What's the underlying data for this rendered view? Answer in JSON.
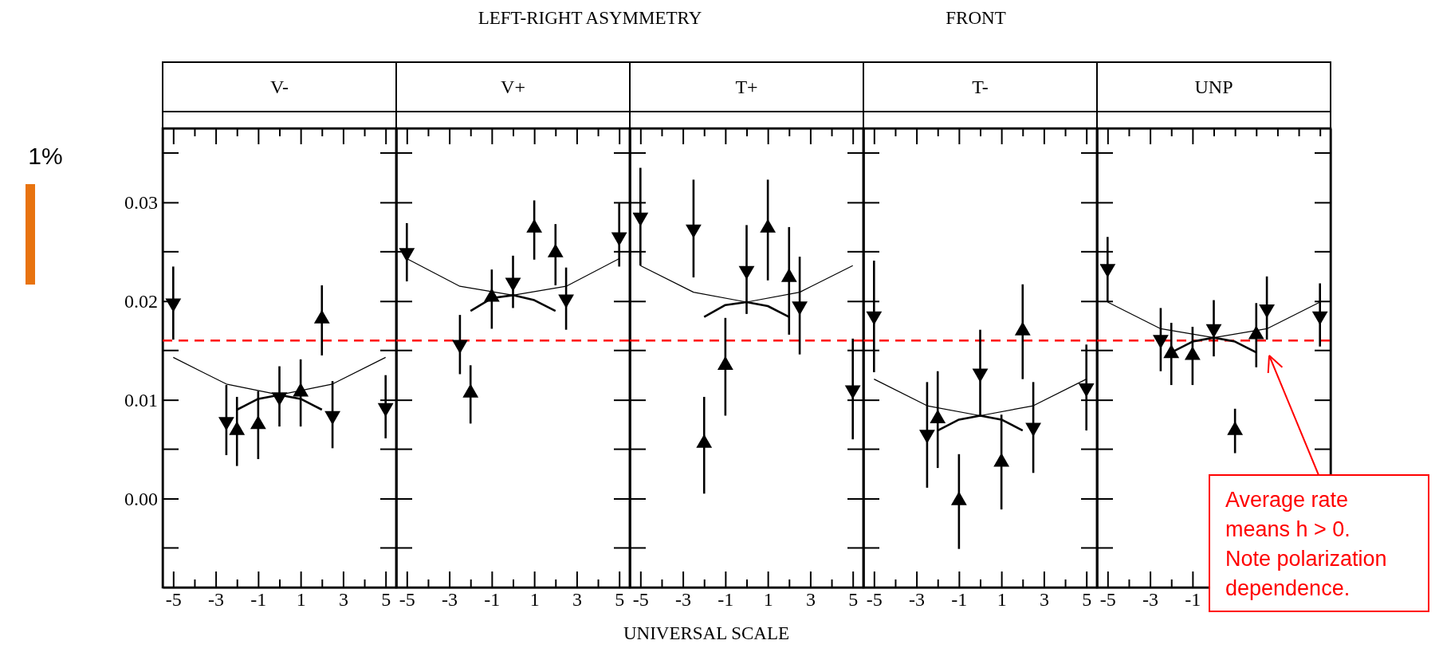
{
  "chart_data": [
    {
      "type": "scatter",
      "title": "V-",
      "annotations": [
        "LEFT-RIGHT ASYMMETRY",
        "FRONT",
        "UNIVERSAL SCALE",
        "1%"
      ],
      "xlim": [
        -5.5,
        5.5
      ],
      "xticks": [
        -5,
        {
          "value": -4,
          "label": null
        },
        -3,
        {
          "value": -2,
          "label": null
        },
        -1,
        {
          "value": 0,
          "label": null
        },
        1,
        {
          "value": 2,
          "label": null
        },
        3,
        {
          "value": 4,
          "label": null
        },
        5
      ],
      "ylim": [
        -0.009,
        0.0375
      ],
      "yticks": [
        {
          "value": 0,
          "label": "0.00"
        },
        {
          "value": 0.01,
          "label": "0.01"
        },
        {
          "value": 0.02,
          "label": "0.02"
        },
        {
          "value": 0.03,
          "label": "0.03"
        }
      ],
      "ref_lines": [
        {
          "axis": "y",
          "value": 0.016,
          "color": "#ff0000",
          "line_style": "dashed"
        }
      ],
      "series": [
        {
          "type": "line",
          "color": "#000000",
          "x": [
            -5,
            -2.5,
            0,
            2.5,
            5
          ],
          "values": [
            0.0143,
            0.0116,
            0.0105,
            0.0116,
            0.0143
          ]
        },
        {
          "type": "line",
          "color": "#000000",
          "x": [
            -2,
            -1,
            0,
            1,
            2
          ],
          "values": [
            0.009,
            0.0101,
            0.0105,
            0.0101,
            0.009
          ]
        },
        {
          "color": "#000000",
          "marker": "triangle-down",
          "x": [
            -5,
            -2.5,
            0,
            2.5,
            5
          ],
          "values": [
            0.0198,
            0.0078,
            0.0103,
            0.0084,
            0.0092
          ],
          "errors": [
            [
              0.0161,
              0.0235
            ],
            [
              0.0044,
              0.0115
            ],
            [
              0.0073,
              0.0134
            ],
            [
              0.0051,
              0.0119
            ],
            [
              0.0061,
              0.0125
            ]
          ]
        },
        {
          "color": "#000000",
          "marker": "triangle",
          "x": [
            -2,
            -1,
            1,
            2
          ],
          "values": [
            0.0069,
            0.0075,
            0.0108,
            0.0182
          ],
          "errors": [
            [
              0.0033,
              0.0103
            ],
            [
              0.004,
              0.0109
            ],
            [
              0.0073,
              0.0141
            ],
            [
              0.0145,
              0.0216
            ]
          ]
        }
      ]
    },
    {
      "type": "scatter",
      "title": "V+",
      "tick_labels": "x",
      "xlim": [
        -5.5,
        5.5
      ],
      "xticks": [
        -5,
        {
          "value": -4,
          "label": null
        },
        -3,
        {
          "value": -2,
          "label": null
        },
        -1,
        {
          "value": 0,
          "label": null
        },
        1,
        {
          "value": 2,
          "label": null
        },
        3,
        {
          "value": 4,
          "label": null
        },
        5
      ],
      "ylim": [
        -0.009,
        0.0375
      ],
      "ref_lines": [
        {
          "axis": "y",
          "value": 0.016,
          "color": "#ff0000",
          "line_style": "dashed"
        }
      ],
      "series": [
        {
          "type": "line",
          "color": "#000000",
          "x": [
            -5,
            -2.5,
            0,
            2.5,
            5
          ],
          "values": [
            0.0243,
            0.0215,
            0.0206,
            0.0215,
            0.0243
          ]
        },
        {
          "type": "line",
          "color": "#000000",
          "x": [
            -2,
            -1,
            0,
            1,
            2
          ],
          "values": [
            0.019,
            0.0203,
            0.0206,
            0.0201,
            0.019
          ]
        },
        {
          "color": "#000000",
          "marker": "triangle-down",
          "x": [
            -5,
            -2.5,
            0,
            2.5,
            5
          ],
          "values": [
            0.0249,
            0.0156,
            0.0219,
            0.0202,
            0.0265
          ],
          "errors": [
            [
              0.022,
              0.0279
            ],
            [
              0.0126,
              0.0186
            ],
            [
              0.0193,
              0.0246
            ],
            [
              0.0171,
              0.0234
            ],
            [
              0.0235,
              0.0299
            ]
          ]
        },
        {
          "color": "#000000",
          "marker": "triangle",
          "x": [
            -2,
            -1,
            1,
            2
          ],
          "values": [
            0.0107,
            0.0204,
            0.0274,
            0.0249
          ],
          "errors": [
            [
              0.0076,
              0.0135
            ],
            [
              0.0172,
              0.0232
            ],
            [
              0.0242,
              0.0302
            ],
            [
              0.0216,
              0.0278
            ]
          ]
        }
      ]
    },
    {
      "type": "scatter",
      "title": "T+",
      "tick_labels": "x",
      "xlim": [
        -5.5,
        5.5
      ],
      "xticks": [
        -5,
        {
          "value": -4,
          "label": null
        },
        -3,
        {
          "value": -2,
          "label": null
        },
        -1,
        {
          "value": 0,
          "label": null
        },
        1,
        {
          "value": 2,
          "label": null
        },
        3,
        {
          "value": 4,
          "label": null
        },
        5
      ],
      "ylim": [
        -0.009,
        0.0375
      ],
      "ref_lines": [
        {
          "axis": "y",
          "value": 0.016,
          "color": "#ff0000",
          "line_style": "dashed"
        }
      ],
      "series": [
        {
          "type": "line",
          "color": "#000000",
          "x": [
            -5,
            -2.5,
            0,
            2.5,
            5
          ],
          "values": [
            0.0236,
            0.0209,
            0.0199,
            0.0209,
            0.0236
          ]
        },
        {
          "type": "line",
          "color": "#000000",
          "x": [
            -2,
            -1,
            0,
            1,
            2
          ],
          "values": [
            0.0184,
            0.0196,
            0.0199,
            0.0195,
            0.0184
          ]
        },
        {
          "color": "#000000",
          "marker": "triangle-down",
          "x": [
            -5,
            -2.5,
            0,
            2.5,
            5
          ],
          "values": [
            0.0285,
            0.0273,
            0.0231,
            0.0195,
            0.011
          ],
          "errors": [
            [
              0.0236,
              0.0335
            ],
            [
              0.0224,
              0.0323
            ],
            [
              0.0187,
              0.0277
            ],
            [
              0.0146,
              0.0245
            ],
            [
              0.006,
              0.0162
            ]
          ]
        },
        {
          "color": "#000000",
          "marker": "triangle",
          "x": [
            -2,
            -1,
            1,
            2
          ],
          "values": [
            0.0056,
            0.0135,
            0.0274,
            0.0224
          ],
          "errors": [
            [
              0.0005,
              0.0103
            ],
            [
              0.0084,
              0.0183
            ],
            [
              0.0221,
              0.0323
            ],
            [
              0.0166,
              0.0275
            ]
          ]
        }
      ]
    },
    {
      "type": "scatter",
      "title": "T-",
      "tick_labels": "x",
      "xlim": [
        -5.5,
        5.5
      ],
      "xticks": [
        -5,
        {
          "value": -4,
          "label": null
        },
        -3,
        {
          "value": -2,
          "label": null
        },
        -1,
        {
          "value": 0,
          "label": null
        },
        1,
        {
          "value": 2,
          "label": null
        },
        3,
        {
          "value": 4,
          "label": null
        },
        5
      ],
      "ylim": [
        -0.009,
        0.0375
      ],
      "ref_lines": [
        {
          "axis": "y",
          "value": 0.016,
          "color": "#ff0000",
          "line_style": "dashed"
        }
      ],
      "series": [
        {
          "type": "line",
          "color": "#000000",
          "x": [
            -5,
            -2.5,
            0,
            2.5,
            5
          ],
          "values": [
            0.0121,
            0.0094,
            0.0084,
            0.0094,
            0.0121
          ]
        },
        {
          "type": "line",
          "color": "#000000",
          "x": [
            -2,
            -1,
            0,
            1,
            2
          ],
          "values": [
            0.0069,
            0.008,
            0.0084,
            0.008,
            0.0069
          ]
        },
        {
          "color": "#000000",
          "marker": "triangle-down",
          "x": [
            -5,
            -2.5,
            0,
            2.5,
            5
          ],
          "values": [
            0.0185,
            0.0065,
            0.0127,
            0.0072,
            0.0112
          ],
          "errors": [
            [
              0.0128,
              0.0241
            ],
            [
              0.0011,
              0.0118
            ],
            [
              0.0084,
              0.0171
            ],
            [
              0.0026,
              0.0118
            ],
            [
              0.0069,
              0.0156
            ]
          ]
        },
        {
          "color": "#000000",
          "marker": "triangle",
          "x": [
            -2,
            -1,
            1,
            2
          ],
          "values": [
            0.0081,
            -0.0002,
            0.0037,
            0.017
          ],
          "errors": [
            [
              0.0031,
              0.0129
            ],
            [
              -0.0051,
              0.0045
            ],
            [
              -0.0011,
              0.0085
            ],
            [
              0.0121,
              0.0217
            ]
          ]
        }
      ]
    },
    {
      "type": "scatter",
      "title": "UNP",
      "tick_labels": "x",
      "annotations": [
        "Average rate means h > 0. Note polarization dependence."
      ],
      "xlim": [
        -5.5,
        5.5
      ],
      "xticks": [
        -5,
        {
          "value": -4,
          "label": null
        },
        -3,
        {
          "value": -2,
          "label": null
        },
        -1,
        {
          "value": 0,
          "label": null
        },
        {
          "value": 1,
          "label": null
        },
        {
          "value": 2,
          "label": null
        },
        {
          "value": 3,
          "label": null
        },
        {
          "value": 4,
          "label": null
        },
        {
          "value": 5,
          "label": null
        }
      ],
      "ylim": [
        -0.009,
        0.0375
      ],
      "ref_lines": [
        {
          "axis": "y",
          "value": 0.016,
          "color": "#ff0000",
          "line_style": "dashed"
        }
      ],
      "series": [
        {
          "type": "line",
          "color": "#000000",
          "x": [
            -5,
            -2.5,
            0,
            2.5,
            5
          ],
          "values": [
            0.0199,
            0.0172,
            0.0163,
            0.0172,
            0.0199
          ]
        },
        {
          "type": "line",
          "color": "#000000",
          "x": [
            -2,
            -1,
            0,
            1,
            2
          ],
          "values": [
            0.0148,
            0.0159,
            0.0163,
            0.0159,
            0.0148
          ]
        },
        {
          "color": "#000000",
          "marker": "triangle-down",
          "x": [
            -5,
            -2.5,
            0,
            2.5,
            5
          ],
          "values": [
            0.0233,
            0.0161,
            0.0172,
            0.0192,
            0.0185
          ],
          "errors": [
            [
              0.02,
              0.0265
            ],
            [
              0.0129,
              0.0193
            ],
            [
              0.0144,
              0.0201
            ],
            [
              0.0161,
              0.0225
            ],
            [
              0.0154,
              0.0218
            ]
          ]
        },
        {
          "color": "#000000",
          "marker": "triangle",
          "x": [
            -2,
            -1,
            1,
            2
          ],
          "values": [
            0.0147,
            0.0145,
            0.0069,
            0.0166
          ],
          "errors": [
            [
              0.0115,
              0.0178
            ],
            [
              0.0115,
              0.0174
            ],
            [
              0.0046,
              0.0091
            ],
            [
              0.0133,
              0.0198
            ]
          ]
        }
      ]
    }
  ]
}
